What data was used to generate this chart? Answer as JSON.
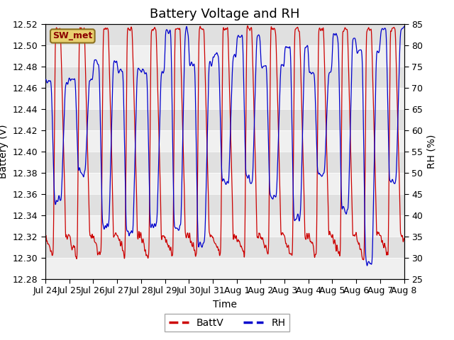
{
  "title": "Battery Voltage and RH",
  "xlabel": "Time",
  "ylabel_left": "Battery (V)",
  "ylabel_right": "RH (%)",
  "ylim_left": [
    12.28,
    12.52
  ],
  "ylim_right": [
    25,
    85
  ],
  "yticks_left": [
    12.28,
    12.3,
    12.32,
    12.34,
    12.36,
    12.38,
    12.4,
    12.42,
    12.44,
    12.46,
    12.48,
    12.5,
    12.52
  ],
  "yticks_right": [
    25,
    30,
    35,
    40,
    45,
    50,
    55,
    60,
    65,
    70,
    75,
    80,
    85
  ],
  "xtick_labels": [
    "Jul 24",
    "Jul 25",
    "Jul 26",
    "Jul 27",
    "Jul 28",
    "Jul 29",
    "Jul 30",
    "Jul 31",
    "Aug 1",
    "Aug 2",
    "Aug 3",
    "Aug 4",
    "Aug 5",
    "Aug 6",
    "Aug 7",
    "Aug 8"
  ],
  "batt_color": "#cc0000",
  "rh_color": "#0000cc",
  "legend_label_batt": "BattV",
  "legend_label_rh": "RH",
  "station_label": "SW_met",
  "bg_color": "#d8d8d8",
  "band_white": "#f0f0f0",
  "band_gray": "#e0e0e0",
  "title_fontsize": 13,
  "axis_fontsize": 10,
  "tick_fontsize": 9
}
